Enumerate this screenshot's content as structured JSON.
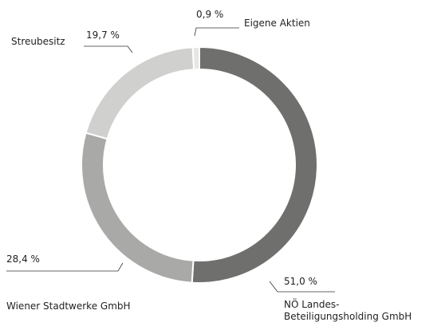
{
  "chart_data": {
    "type": "donut",
    "categories": [
      "NÖ Landes-\nBeteiligungsholding GmbH",
      "Wiener Stadtwerke GmbH",
      "Streubesitz",
      "Eigene Aktien"
    ],
    "values": [
      51.0,
      28.4,
      19.7,
      0.9
    ],
    "value_labels": [
      "51,0 %",
      "28,4 %",
      "19,7 %",
      "0,9 %"
    ],
    "colors": [
      "#6f6f6e",
      "#a9a9a8",
      "#d0d0cf",
      "#e6e6e5"
    ]
  }
}
